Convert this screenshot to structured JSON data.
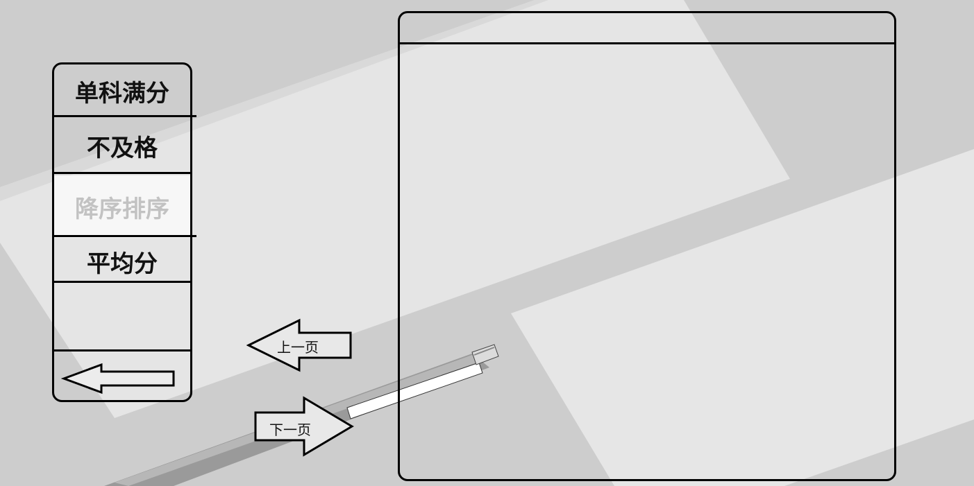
{
  "menu": {
    "items": [
      {
        "label": "单科满分",
        "state": "normal"
      },
      {
        "label": "不及格",
        "state": "normal"
      },
      {
        "label": "降序排序",
        "state": "disabled"
      },
      {
        "label": "平均分",
        "state": "normal"
      }
    ],
    "back_icon": "left-arrow-icon"
  },
  "pagination": {
    "prev_label": "上一页",
    "next_label": "下一页"
  },
  "colors": {
    "background": "#cfcfcf",
    "paper": "#e6e6e6",
    "border": "#000000",
    "disabled_text": "#c2c2c2"
  }
}
